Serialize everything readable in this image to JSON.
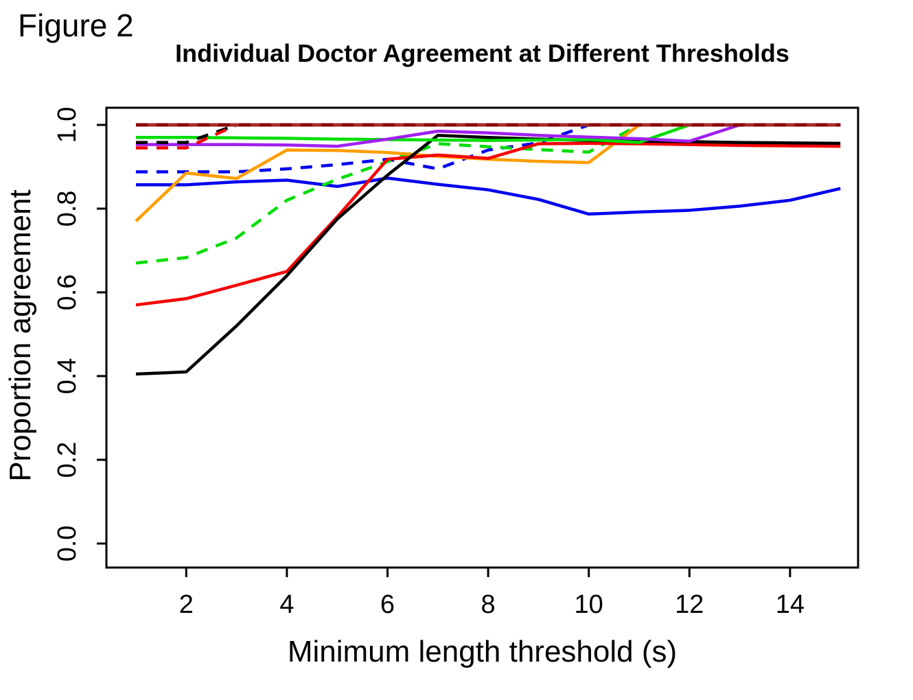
{
  "figure_label": "Figure 2",
  "chart_data": {
    "type": "line",
    "title": "Individual Doctor Agreement at Different Thresholds",
    "xlabel": "Minimum length threshold (s)",
    "ylabel": "Proportion agreement",
    "xlim": [
      0.41,
      15.35
    ],
    "ylim": [
      -0.06,
      1.04
    ],
    "grid": "off",
    "legend": "none",
    "x": [
      1,
      2,
      3,
      4,
      5,
      6,
      7,
      8,
      9,
      10,
      11,
      12,
      13,
      14,
      15
    ],
    "xticks": [
      2,
      4,
      6,
      8,
      10,
      12,
      14
    ],
    "xtick_labels": [
      "2",
      "4",
      "6",
      "8",
      "10",
      "12",
      "14"
    ],
    "yticks": [
      0.0,
      0.2,
      0.4,
      0.6,
      0.8,
      1.0
    ],
    "ytick_labels": [
      "0.0",
      "0.2",
      "0.4",
      "0.6",
      "0.8",
      "1.0"
    ],
    "axis_color": "#000000",
    "series": [
      {
        "name": "blue-solid",
        "color": "#0000ee",
        "dash": false,
        "width": 4.5,
        "values": [
          0.857,
          0.857,
          0.864,
          0.868,
          0.853,
          0.873,
          0.858,
          0.845,
          0.822,
          0.787,
          0.792,
          0.796,
          0.806,
          0.82,
          0.848
        ]
      },
      {
        "name": "blue-dashed",
        "color": "#0000ee",
        "dash": true,
        "width": 4.5,
        "values": [
          0.888,
          0.888,
          0.888,
          0.895,
          0.905,
          0.918,
          0.895,
          0.94,
          0.957,
          1.0,
          1.0,
          1.0,
          1.0,
          1.0,
          1.0
        ]
      },
      {
        "name": "green-dashed",
        "color": "#00dd00",
        "dash": true,
        "width": 4.5,
        "values": [
          0.67,
          0.683,
          0.73,
          0.82,
          0.87,
          0.912,
          0.955,
          0.948,
          0.941,
          0.935,
          1.0,
          1.0,
          1.0,
          1.0,
          1.0
        ]
      },
      {
        "name": "orange-solid",
        "color": "#ff9e00",
        "dash": false,
        "width": 4.5,
        "values": [
          0.77,
          0.885,
          0.872,
          0.94,
          0.939,
          0.934,
          0.925,
          0.918,
          0.913,
          0.91,
          1.0,
          1.0,
          1.0,
          1.0,
          1.0
        ]
      },
      {
        "name": "red-solid",
        "color": "#f50000",
        "dash": false,
        "width": 4.5,
        "values": [
          0.57,
          0.585,
          0.617,
          0.65,
          0.78,
          0.918,
          0.928,
          0.92,
          0.955,
          0.956,
          0.955,
          0.953,
          0.951,
          0.95,
          0.949
        ]
      },
      {
        "name": "black-solid",
        "color": "#000000",
        "dash": false,
        "width": 4.5,
        "values": [
          0.405,
          0.41,
          0.52,
          0.64,
          0.775,
          0.88,
          0.975,
          0.97,
          0.966,
          0.963,
          0.961,
          0.96,
          0.958,
          0.957,
          0.956
        ]
      },
      {
        "name": "green-solid",
        "color": "#00dd00",
        "dash": false,
        "width": 4.5,
        "values": [
          0.97,
          0.97,
          0.969,
          0.968,
          0.966,
          0.965,
          0.964,
          0.963,
          0.964,
          0.965,
          0.958,
          1.0,
          1.0,
          1.0,
          1.0
        ]
      },
      {
        "name": "purple-solid",
        "color": "#a020f0",
        "dash": false,
        "width": 4.5,
        "values": [
          0.953,
          0.953,
          0.953,
          0.952,
          0.949,
          0.966,
          0.985,
          0.981,
          0.975,
          0.971,
          0.967,
          0.961,
          1.0,
          1.0,
          1.0
        ]
      },
      {
        "name": "black-dashed",
        "color": "#000000",
        "dash": true,
        "width": 4.5,
        "values": [
          0.958,
          0.958,
          1.0,
          1.0,
          1.0,
          1.0,
          1.0,
          1.0,
          1.0,
          1.0,
          1.0,
          1.0,
          1.0,
          1.0,
          1.0
        ]
      },
      {
        "name": "red-dashed",
        "color": "#f50000",
        "dash": true,
        "width": 4.5,
        "values": [
          0.945,
          0.945,
          1.0,
          1.0,
          1.0,
          1.0,
          1.0,
          1.0,
          1.0,
          1.0,
          1.0,
          1.0,
          1.0,
          1.0,
          1.0
        ]
      },
      {
        "name": "brown-solid",
        "color": "#a52a2a",
        "dash": false,
        "width": 5,
        "values": [
          1.0,
          1.0,
          1.0,
          1.0,
          1.0,
          1.0,
          1.0,
          1.0,
          1.0,
          1.0,
          1.0,
          1.0,
          1.0,
          1.0,
          1.0
        ]
      },
      {
        "name": "darkred-dashed",
        "color": "#8b0000",
        "dash": true,
        "width": 5,
        "values": [
          1.0,
          1.0,
          1.0,
          1.0,
          1.0,
          1.0,
          1.0,
          1.0,
          1.0,
          1.0,
          1.0,
          1.0,
          1.0,
          1.0,
          1.0
        ]
      }
    ]
  }
}
